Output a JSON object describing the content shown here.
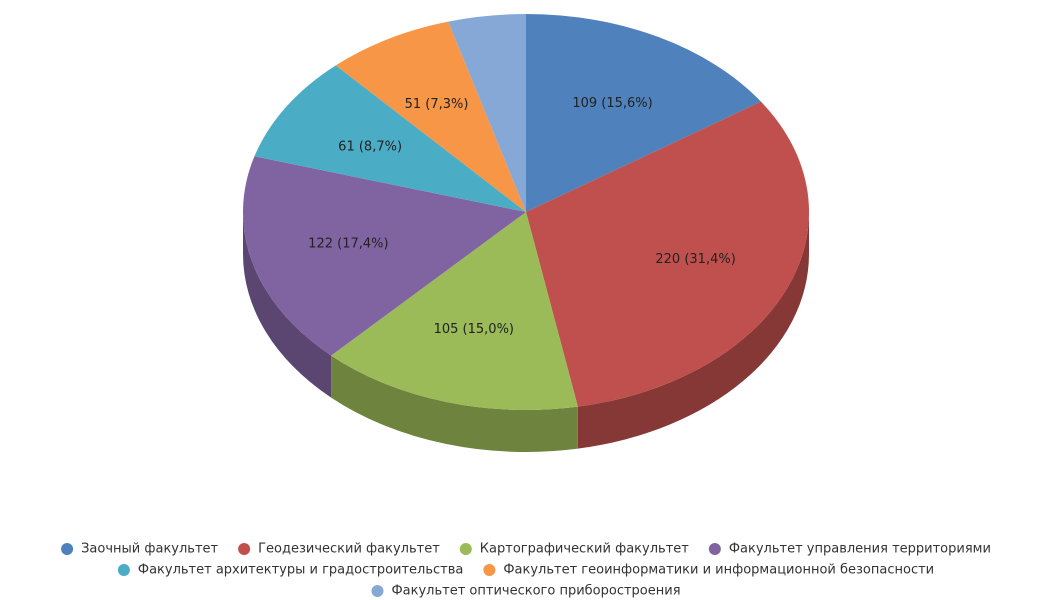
{
  "chart_data": {
    "type": "pie",
    "categories": [
      "Заочный факультет",
      "Геодезический факультет",
      "Картографический факультет",
      "Факультет управления территориями",
      "Факультет архитектуры и градостроительства",
      "Факультет геоинформатики и информационной безопасности",
      "Факультет оптического приборостроения"
    ],
    "values": [
      109,
      220,
      105,
      122,
      61,
      51,
      31
    ],
    "value_labels": [
      "109 (15,6%)",
      "220 (31,4%)",
      "105 (15,0%)",
      "122 (17,4%)",
      "61 (8,7%)",
      "51 (7,3%)",
      null
    ],
    "colors": [
      "#4f81bd",
      "#c0504d",
      "#9bbb59",
      "#8064a2",
      "#4bacc6",
      "#f79646",
      "#86a8d6"
    ],
    "legend": "bottom"
  }
}
